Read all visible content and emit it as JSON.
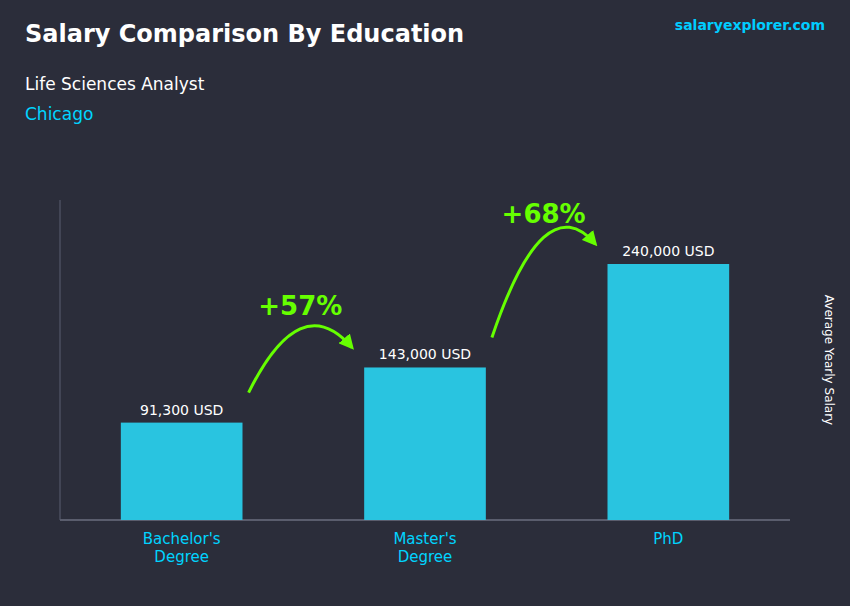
{
  "chart_data": {
    "type": "bar",
    "title": "Salary Comparison By Education",
    "subtitle": "Life Sciences Analyst",
    "categories": [
      "Bachelor's\nDegree",
      "Master's\nDegree",
      "PhD"
    ],
    "values": [
      91300,
      143000,
      240000
    ],
    "value_labels": [
      "91,300 USD",
      "143,000 USD",
      "240,000 USD"
    ],
    "data_labels": true,
    "color": "#29c4e0",
    "ylabel": "Average Yearly Salary",
    "ylim": [
      0,
      300000
    ],
    "tick_labels": "x",
    "grid": false,
    "annotations": [
      {
        "text": "Chicago"
      },
      {
        "text": "salaryexplorer.com"
      },
      {
        "text": "+57%",
        "from": 0,
        "to": 1,
        "color": "#66ff00"
      },
      {
        "text": "+68%",
        "from": 1,
        "to": 2,
        "color": "#66ff00"
      }
    ]
  }
}
